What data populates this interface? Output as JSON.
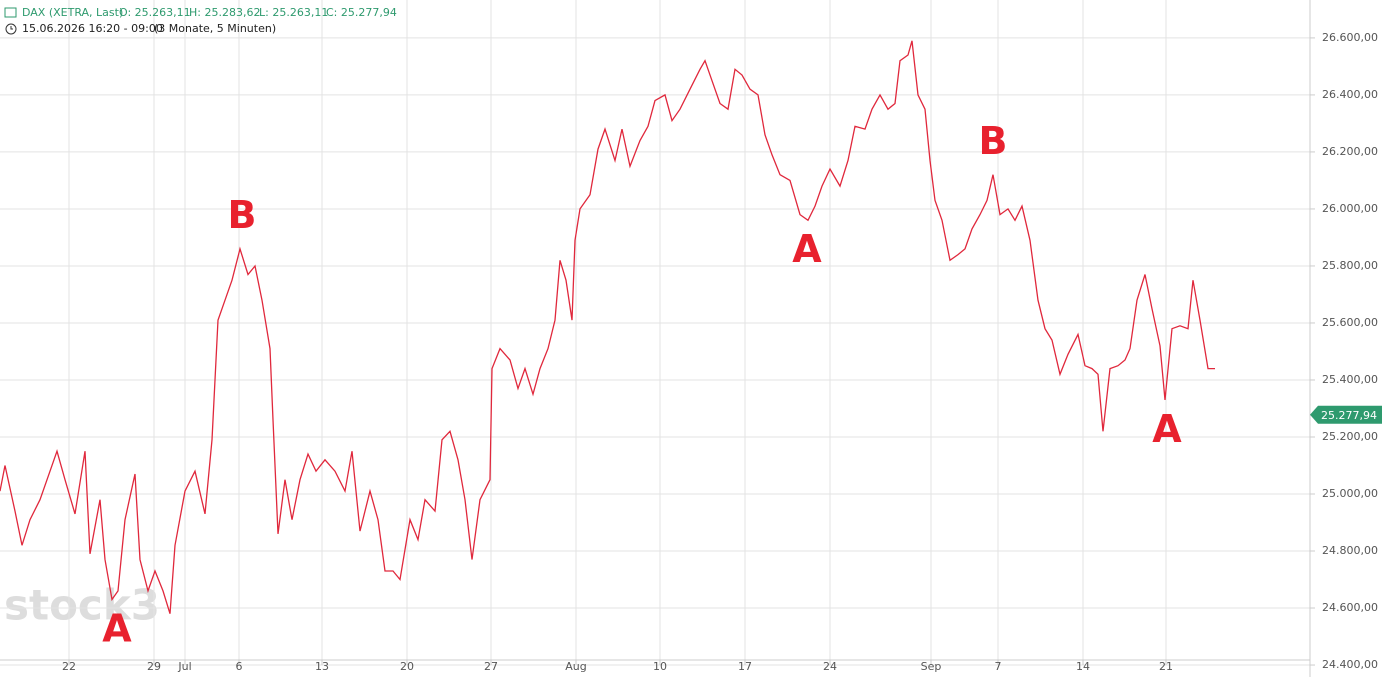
{
  "header": {
    "instrument": "DAX (XETRA, Last)",
    "open": "O: 25.263,11",
    "high": "H: 25.283,62",
    "low": "L: 25.263,11",
    "close": "C: 25.277,94",
    "period": "15.06.2026 16:20 - 09:00",
    "range": "(3 Monate, 5 Minuten)"
  },
  "watermark": "stock3",
  "chart_data": {
    "type": "line",
    "color": "#e0283c",
    "grid": true,
    "x": [
      0,
      1,
      3,
      4.4,
      6,
      8,
      10,
      11.4,
      13,
      15,
      17,
      18,
      20,
      21,
      22.4,
      23.6,
      25,
      27,
      28,
      29.6,
      31,
      32.6,
      34,
      35,
      37,
      39,
      41,
      42.4,
      43.6,
      45,
      46.4,
      48,
      49.6,
      51,
      52.4,
      54,
      54.6,
      55.6,
      57,
      58.4,
      60,
      61.6,
      63.2,
      65,
      67,
      69,
      70.4,
      72,
      74,
      75.6,
      77,
      78.6,
      80,
      82,
      83.6,
      85,
      87,
      88.4,
      90,
      91.6,
      93,
      94.4,
      96,
      98,
      98.4,
      100,
      102,
      103.6,
      105,
      106.6,
      108,
      109.6,
      111,
      112,
      113.2,
      114.4,
      115,
      116,
      118,
      119.6,
      121,
      123,
      124.4,
      126,
      128,
      129.6,
      131,
      133,
      134.4,
      136,
      138,
      140,
      141,
      142.4,
      144,
      145.6,
      147,
      148.4,
      150,
      151.6,
      153,
      154.4,
      156,
      158,
      160,
      161.6,
      163,
      164.4,
      166,
      168,
      169.6,
      171,
      173,
      174.4,
      176,
      177.6,
      179,
      180,
      181.6,
      182.4,
      183.6,
      185,
      186,
      187,
      188.4,
      190,
      191.6,
      193,
      194.4,
      196,
      197.4,
      198.6,
      200,
      201.6,
      203,
      204.4,
      206,
      207.6,
      209,
      210.4,
      212,
      213.6,
      215.6,
      217,
      218.4,
      219.6,
      220.6,
      222,
      223.6,
      225,
      226,
      227.4,
      229,
      230.4,
      232,
      233,
      234.4,
      236,
      237.6,
      238.6,
      240,
      241.6,
      243
    ],
    "values": [
      25010,
      25100,
      24940,
      24820,
      24910,
      24980,
      25080,
      25150,
      25050,
      24930,
      25150,
      24790,
      24980,
      24770,
      24630,
      24660,
      24910,
      25070,
      24770,
      24660,
      24730,
      24660,
      24580,
      24820,
      25010,
      25080,
      24930,
      25190,
      25610,
      25680,
      25750,
      25860,
      25770,
      25800,
      25680,
      25510,
      25260,
      24860,
      25050,
      24910,
      25050,
      25140,
      25080,
      25120,
      25080,
      25010,
      25150,
      24870,
      25010,
      24910,
      24730,
      24730,
      24700,
      24910,
      24840,
      24980,
      24940,
      25190,
      25220,
      25120,
      24980,
      24770,
      24980,
      25050,
      25440,
      25510,
      25470,
      25370,
      25440,
      25350,
      25440,
      25510,
      25610,
      25820,
      25750,
      25610,
      25890,
      26000,
      26050,
      26210,
      26280,
      26170,
      26280,
      26150,
      26240,
      26290,
      26380,
      26400,
      26310,
      26350,
      26420,
      26490,
      26520,
      26450,
      26370,
      26350,
      26490,
      26470,
      26420,
      26400,
      26260,
      26190,
      26120,
      26100,
      25980,
      25960,
      26010,
      26080,
      26140,
      26080,
      26170,
      26290,
      26280,
      26350,
      26400,
      26350,
      26370,
      26520,
      26540,
      26590,
      26400,
      26350,
      26170,
      26030,
      25960,
      25820,
      25840,
      25860,
      25930,
      25980,
      26030,
      26120,
      25980,
      26000,
      25960,
      26010,
      25890,
      25680,
      25580,
      25540,
      25420,
      25490,
      25560,
      25450,
      25440,
      25420,
      25220,
      25440,
      25450,
      25470,
      25510,
      25680,
      25770,
      25650,
      25520,
      25330,
      25580,
      25590,
      25580,
      25750,
      25610,
      25440,
      25440
    ],
    "xlim": [
      0,
      262
    ],
    "xticks": [
      {
        "value": 13.8,
        "label": "22"
      },
      {
        "value": 30.8,
        "label": "29"
      },
      {
        "value": 37,
        "label": "Jul"
      },
      {
        "value": 47.8,
        "label": "6"
      },
      {
        "value": 64.4,
        "label": "13"
      },
      {
        "value": 81.4,
        "label": "20"
      },
      {
        "value": 98.2,
        "label": "27"
      },
      {
        "value": 115.2,
        "label": "Aug"
      },
      {
        "value": 132,
        "label": "10"
      },
      {
        "value": 149,
        "label": "17"
      },
      {
        "value": 166,
        "label": "24"
      },
      {
        "value": 186.2,
        "label": "Sep"
      },
      {
        "value": 199.6,
        "label": "7"
      },
      {
        "value": 216.6,
        "label": "14"
      },
      {
        "value": 233.2,
        "label": "21"
      }
    ],
    "ylim": [
      24358,
      26733
    ],
    "yticks": [
      {
        "value": 24400,
        "label": "24.400,00"
      },
      {
        "value": 24600,
        "label": "24.600,00"
      },
      {
        "value": 24800,
        "label": "24.800,00"
      },
      {
        "value": 25000,
        "label": "25.000,00"
      },
      {
        "value": 25200,
        "label": "25.200,00"
      },
      {
        "value": 25400,
        "label": "25.400,00"
      },
      {
        "value": 25600,
        "label": "25.600,00"
      },
      {
        "value": 25800,
        "label": "25.800,00"
      },
      {
        "value": 26000,
        "label": "26.000,00"
      },
      {
        "value": 26200,
        "label": "26.200,00"
      },
      {
        "value": 26400,
        "label": "26.400,00"
      },
      {
        "value": 26600,
        "label": "26.600,00"
      }
    ],
    "last_price": {
      "value": 25277.94,
      "label": "25.277,94"
    },
    "last_price_color": "#2e9a6e",
    "annotations": [
      {
        "text": "A",
        "x": 23.4,
        "y": 24520
      },
      {
        "text": "B",
        "x": 48.4,
        "y": 25970
      },
      {
        "text": "A",
        "x": 161.4,
        "y": 25850
      },
      {
        "text": "B",
        "x": 198.6,
        "y": 26230
      },
      {
        "text": "A",
        "x": 233.4,
        "y": 25220
      }
    ]
  }
}
